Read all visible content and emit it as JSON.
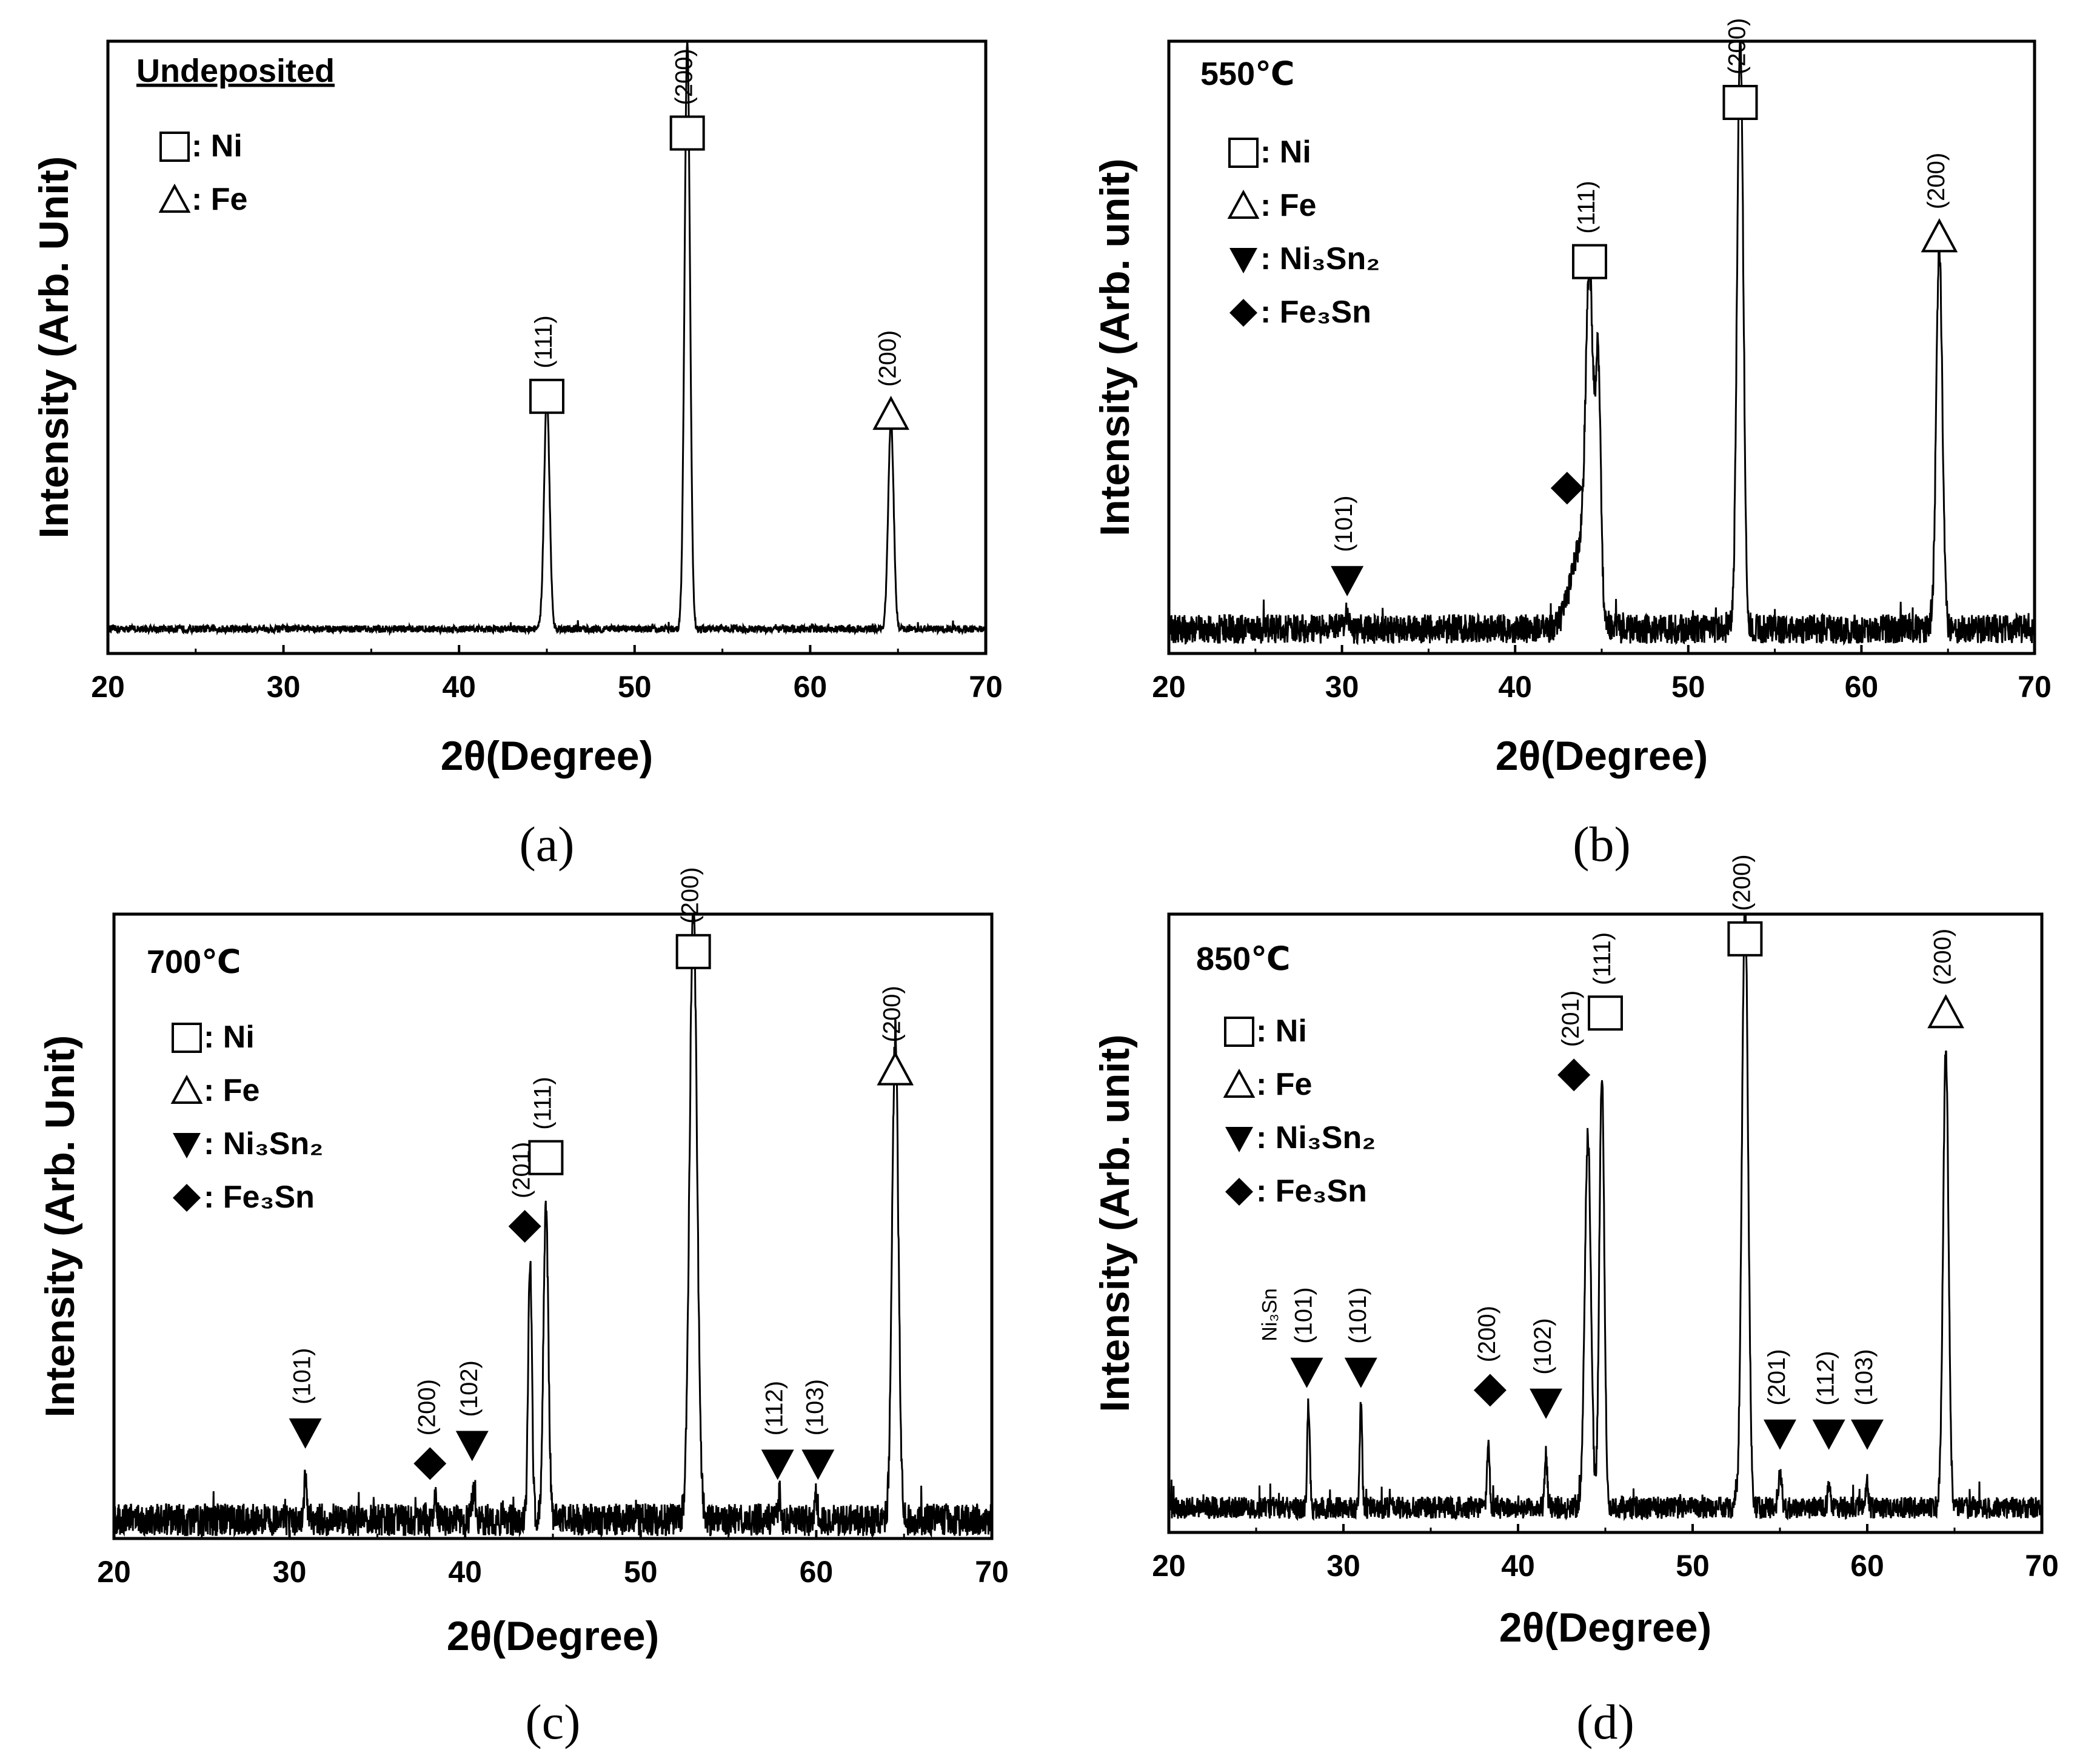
{
  "figure": {
    "panels": [
      {
        "caption": "(a)",
        "condition": "Undeposited",
        "legend": [
          {
            "symbol": "open-square",
            "text": ": Ni"
          },
          {
            "symbol": "open-triangle",
            "text": ": Fe"
          }
        ]
      },
      {
        "caption": "(b)",
        "condition": "550℃",
        "legend": [
          {
            "symbol": "open-square",
            "text": ": Ni"
          },
          {
            "symbol": "open-triangle",
            "text": ": Fe"
          },
          {
            "symbol": "filled-down-triangle",
            "text": ": Ni₃Sn₂"
          },
          {
            "symbol": "filled-diamond",
            "text": ": Fe₃Sn"
          }
        ]
      },
      {
        "caption": "(c)",
        "condition": "700℃",
        "legend": [
          {
            "symbol": "open-square",
            "text": ": Ni"
          },
          {
            "symbol": "open-triangle",
            "text": ": Fe"
          },
          {
            "symbol": "filled-down-triangle",
            "text": ": Ni₃Sn₂"
          },
          {
            "symbol": "filled-diamond",
            "text": ": Fe₃Sn"
          }
        ]
      },
      {
        "caption": "(d)",
        "condition": "850℃",
        "legend": [
          {
            "symbol": "open-square",
            "text": ": Ni"
          },
          {
            "symbol": "open-triangle",
            "text": ": Fe"
          },
          {
            "symbol": "filled-down-triangle",
            "text": ": Ni₃Sn₂"
          },
          {
            "symbol": "filled-diamond",
            "text": ": Fe₃Sn"
          }
        ]
      }
    ]
  },
  "chart_data": [
    {
      "type": "line",
      "title": "Undeposited",
      "xlabel": "2θ(Degree)",
      "ylabel": "Intensity (Arb. Unit)",
      "xlim": [
        20,
        70
      ],
      "ylim": [
        0,
        100
      ],
      "xticks": [
        20,
        30,
        40,
        50,
        60,
        70
      ],
      "baseline": 4,
      "noise": 0.6,
      "peaks": [
        {
          "x": 45.0,
          "height": 38,
          "width": 0.22
        },
        {
          "x": 53.0,
          "height": 96,
          "width": 0.22
        },
        {
          "x": 64.6,
          "height": 34,
          "width": 0.22
        }
      ],
      "annotations": [
        {
          "x": 45.0,
          "y": 42,
          "symbol": "open-square",
          "hkl": "(111)"
        },
        {
          "x": 53.0,
          "y": 85,
          "symbol": "open-square",
          "hkl": "(200)"
        },
        {
          "x": 64.6,
          "y": 39,
          "symbol": "open-triangle",
          "hkl": "(200)"
        }
      ]
    },
    {
      "type": "line",
      "title": "550℃",
      "xlabel": "2θ(Degree)",
      "ylabel": "Intensity (Arb. unit)",
      "xlim": [
        20,
        70
      ],
      "ylim": [
        0,
        100
      ],
      "xticks": [
        20,
        30,
        40,
        50,
        60,
        70
      ],
      "baseline": 4,
      "noise": 2.4,
      "peaks": [
        {
          "x": 30.3,
          "height": 3,
          "width": 0.15
        },
        {
          "x": 43.9,
          "height": 14,
          "width": 0.9
        },
        {
          "x": 44.3,
          "height": 48,
          "width": 0.3
        },
        {
          "x": 44.8,
          "height": 38,
          "width": 0.2
        },
        {
          "x": 53.0,
          "height": 98,
          "width": 0.25
        },
        {
          "x": 64.5,
          "height": 62,
          "width": 0.25
        }
      ],
      "annotations": [
        {
          "x": 30.3,
          "y": 12,
          "symbol": "filled-down-triangle",
          "hkl": "(101)"
        },
        {
          "x": 43.0,
          "y": 27,
          "symbol": "filled-diamond",
          "hkl": ""
        },
        {
          "x": 44.3,
          "y": 64,
          "symbol": "open-square",
          "hkl": "(111)"
        },
        {
          "x": 53.0,
          "y": 90,
          "symbol": "open-square",
          "hkl": "(200)"
        },
        {
          "x": 64.5,
          "y": 68,
          "symbol": "open-triangle",
          "hkl": "(200)"
        }
      ]
    },
    {
      "type": "line",
      "title": "700℃",
      "xlabel": "2θ(Degree)",
      "ylabel": "Intensity (Arb. Unit)",
      "xlim": [
        20,
        70
      ],
      "ylim": [
        0,
        100
      ],
      "xticks": [
        20,
        30,
        40,
        50,
        60,
        70
      ],
      "baseline": 3,
      "noise": 2.6,
      "peaks": [
        {
          "x": 30.9,
          "height": 7,
          "width": 0.1
        },
        {
          "x": 38.3,
          "height": 4,
          "width": 0.1
        },
        {
          "x": 40.5,
          "height": 5,
          "width": 0.15
        },
        {
          "x": 43.7,
          "height": 42,
          "width": 0.15
        },
        {
          "x": 44.6,
          "height": 50,
          "width": 0.2
        },
        {
          "x": 53.0,
          "height": 98,
          "width": 0.3
        },
        {
          "x": 57.9,
          "height": 4,
          "width": 0.1
        },
        {
          "x": 60.0,
          "height": 4,
          "width": 0.1
        },
        {
          "x": 64.5,
          "height": 78,
          "width": 0.25
        }
      ],
      "annotations": [
        {
          "x": 30.9,
          "y": 17,
          "symbol": "filled-down-triangle",
          "hkl": "(101)"
        },
        {
          "x": 38.0,
          "y": 12,
          "symbol": "filled-diamond",
          "hkl": "(200)"
        },
        {
          "x": 40.4,
          "y": 15,
          "symbol": "filled-down-triangle",
          "hkl": "(102)"
        },
        {
          "x": 43.4,
          "y": 50,
          "symbol": "filled-diamond",
          "hkl": "(201)"
        },
        {
          "x": 44.6,
          "y": 61,
          "symbol": "open-square",
          "hkl": "(111)"
        },
        {
          "x": 53.0,
          "y": 94,
          "symbol": "open-square",
          "hkl": "(200)"
        },
        {
          "x": 57.8,
          "y": 12,
          "symbol": "filled-down-triangle",
          "hkl": "(112)"
        },
        {
          "x": 60.1,
          "y": 12,
          "symbol": "filled-down-triangle",
          "hkl": "(103)"
        },
        {
          "x": 64.5,
          "y": 75,
          "symbol": "open-triangle",
          "hkl": "(200)"
        }
      ]
    },
    {
      "type": "line",
      "title": "850℃",
      "xlabel": "2θ(Degree)",
      "ylabel": "Intensity (Arb. unit)",
      "xlim": [
        20,
        70
      ],
      "ylim": [
        0,
        100
      ],
      "xticks": [
        20,
        30,
        40,
        50,
        60,
        70
      ],
      "baseline": 4,
      "noise": 1.8,
      "peaks": [
        {
          "x": 28.0,
          "height": 17,
          "width": 0.1
        },
        {
          "x": 31.0,
          "height": 17,
          "width": 0.1
        },
        {
          "x": 38.3,
          "height": 10,
          "width": 0.1
        },
        {
          "x": 41.6,
          "height": 9,
          "width": 0.1
        },
        {
          "x": 44.0,
          "height": 60,
          "width": 0.25
        },
        {
          "x": 44.8,
          "height": 70,
          "width": 0.2
        },
        {
          "x": 53.0,
          "height": 98,
          "width": 0.25
        },
        {
          "x": 55.0,
          "height": 5,
          "width": 0.15
        },
        {
          "x": 57.8,
          "height": 4,
          "width": 0.1
        },
        {
          "x": 60.0,
          "height": 4,
          "width": 0.1
        },
        {
          "x": 64.5,
          "height": 74,
          "width": 0.22
        }
      ],
      "annotations": [
        {
          "x": 27.9,
          "y": 26,
          "symbol": "filled-down-triangle",
          "hkl": "(101)",
          "phase": "Ni₃Sn"
        },
        {
          "x": 31.0,
          "y": 26,
          "symbol": "filled-down-triangle",
          "hkl": "(101)"
        },
        {
          "x": 38.4,
          "y": 23,
          "symbol": "filled-diamond",
          "hkl": "(200)"
        },
        {
          "x": 41.6,
          "y": 21,
          "symbol": "filled-down-triangle",
          "hkl": "(102)"
        },
        {
          "x": 43.2,
          "y": 74,
          "symbol": "filled-diamond",
          "hkl": "(201)"
        },
        {
          "x": 45.0,
          "y": 84,
          "symbol": "open-square",
          "hkl": "(111)"
        },
        {
          "x": 53.0,
          "y": 96,
          "symbol": "open-square",
          "hkl": "(200)"
        },
        {
          "x": 55.0,
          "y": 16,
          "symbol": "filled-down-triangle",
          "hkl": "(201)"
        },
        {
          "x": 57.8,
          "y": 16,
          "symbol": "filled-down-triangle",
          "hkl": "(112)"
        },
        {
          "x": 60.0,
          "y": 16,
          "symbol": "filled-down-triangle",
          "hkl": "(103)"
        },
        {
          "x": 64.5,
          "y": 84,
          "symbol": "open-triangle",
          "hkl": "(200)"
        }
      ]
    }
  ]
}
